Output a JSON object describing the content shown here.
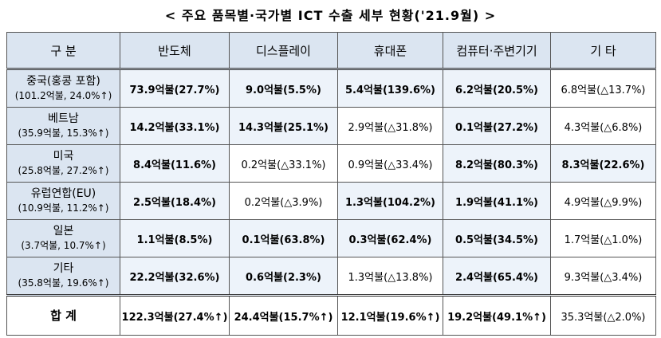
{
  "title": "< 주요 품목별·국가별 ICT 수출 세부 현황('21.9월) >",
  "table": {
    "header": [
      "구 분",
      "반도체",
      "디스플레이",
      "휴대폰",
      "컴퓨터·주변기기",
      "기 타"
    ],
    "rows": [
      {
        "name": "중국(홍콩 포함)",
        "sub": "(101.2억불, 24.0%↑)",
        "cells": [
          {
            "text": "73.9억불(27.7%)",
            "bold": true
          },
          {
            "text": "9.0억불(5.5%)",
            "bold": true
          },
          {
            "text": "5.4억불(139.6%)",
            "bold": true
          },
          {
            "text": "6.2억불(20.5%)",
            "bold": true
          },
          {
            "text": "6.8억불(△13.7%)",
            "bold": false
          }
        ]
      },
      {
        "name": "베트남",
        "sub": "(35.9억불, 15.3%↑)",
        "cells": [
          {
            "text": "14.2억불(33.1%)",
            "bold": true
          },
          {
            "text": "14.3억불(25.1%)",
            "bold": true
          },
          {
            "text": "2.9억불(△31.8%)",
            "bold": false
          },
          {
            "text": "0.1억불(27.2%)",
            "bold": true
          },
          {
            "text": "4.3억불(△6.8%)",
            "bold": false
          }
        ]
      },
      {
        "name": "미국",
        "sub": "(25.8억불, 27.2%↑)",
        "cells": [
          {
            "text": "8.4억불(11.6%)",
            "bold": true
          },
          {
            "text": "0.2억불(△33.1%)",
            "bold": false
          },
          {
            "text": "0.9억불(△33.4%)",
            "bold": false
          },
          {
            "text": "8.2억불(80.3%)",
            "bold": true
          },
          {
            "text": "8.3억불(22.6%)",
            "bold": true
          }
        ]
      },
      {
        "name": "유럽연합(EU)",
        "sub": "(10.9억불, 11.2%↑)",
        "cells": [
          {
            "text": "2.5억불(18.4%)",
            "bold": true
          },
          {
            "text": "0.2억불(△3.9%)",
            "bold": false
          },
          {
            "text": "1.3억불(104.2%)",
            "bold": true
          },
          {
            "text": "1.9억불(41.1%)",
            "bold": true
          },
          {
            "text": "4.9억불(△9.9%)",
            "bold": false
          }
        ]
      },
      {
        "name": "일본",
        "sub": "(3.7억불, 10.7%↑)",
        "cells": [
          {
            "text": "1.1억불(8.5%)",
            "bold": true
          },
          {
            "text": "0.1억불(63.8%)",
            "bold": true
          },
          {
            "text": "0.3억불(62.4%)",
            "bold": true
          },
          {
            "text": "0.5억불(34.5%)",
            "bold": true
          },
          {
            "text": "1.7억불(△1.0%)",
            "bold": false
          }
        ]
      },
      {
        "name": "기타",
        "sub": "(35.8억불, 19.6%↑)",
        "cells": [
          {
            "text": "22.2억불(32.6%)",
            "bold": true
          },
          {
            "text": "0.6억불(2.3%)",
            "bold": true
          },
          {
            "text": "1.3억불(△13.8%)",
            "bold": false
          },
          {
            "text": "2.4억불(65.4%)",
            "bold": true
          },
          {
            "text": "9.3억불(△3.4%)",
            "bold": false
          }
        ]
      }
    ],
    "total": {
      "name": "합 계",
      "cells": [
        {
          "text": "122.3억불(27.4%↑)",
          "bold": true
        },
        {
          "text": "24.4억불(15.7%↑)",
          "bold": true
        },
        {
          "text": "12.1억불(19.6%↑)",
          "bold": true
        },
        {
          "text": "19.2억불(49.1%↑)",
          "bold": true
        },
        {
          "text": "35.3억불(△2.0%)",
          "bold": false
        }
      ]
    }
  }
}
